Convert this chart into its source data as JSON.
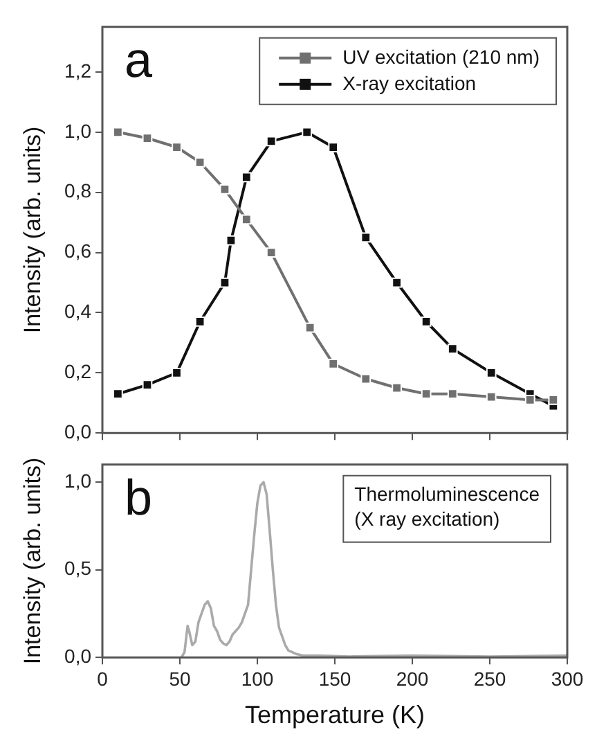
{
  "chart_data": [
    {
      "type": "line",
      "ylabel": "Intensity (arb. units)",
      "annotations": [
        "a"
      ],
      "xlim": [
        0,
        300
      ],
      "xticks": [
        0,
        50,
        100,
        150,
        200,
        250,
        300
      ],
      "ylim": [
        0,
        1.35
      ],
      "yticks": [
        {
          "value": 0,
          "label": "0,0"
        },
        {
          "value": 0.2,
          "label": "0,2"
        },
        {
          "value": 0.4,
          "label": "0,4"
        },
        {
          "value": 0.6,
          "label": "0,6"
        },
        {
          "value": 0.8,
          "label": "0,8"
        },
        {
          "value": 1.0,
          "label": "1,0"
        },
        {
          "value": 1.2,
          "label": "1,2"
        }
      ],
      "tick_labels": "y",
      "grid": false,
      "legend": "top right",
      "marker": "square",
      "line_style": "solid",
      "series": [
        {
          "name": "UV excitation (210 nm)",
          "color": "#707070",
          "x": [
            10,
            29,
            48,
            63,
            79,
            93,
            109,
            134,
            149,
            170,
            190,
            209,
            226,
            251,
            276,
            291
          ],
          "values": [
            1.0,
            0.98,
            0.95,
            0.9,
            0.81,
            0.71,
            0.6,
            0.35,
            0.23,
            0.18,
            0.15,
            0.13,
            0.13,
            0.12,
            0.11,
            0.11
          ]
        },
        {
          "name": "X-ray excitation",
          "color": "#111111",
          "x": [
            10,
            29,
            48,
            63,
            79,
            83,
            93,
            109,
            132,
            149,
            170,
            190,
            209,
            226,
            251,
            276,
            291
          ],
          "values": [
            0.13,
            0.16,
            0.2,
            0.37,
            0.5,
            0.64,
            0.85,
            0.97,
            1.0,
            0.95,
            0.65,
            0.5,
            0.37,
            0.28,
            0.2,
            0.13,
            0.09
          ]
        }
      ]
    },
    {
      "type": "line",
      "xlabel": "Temperature (K)",
      "ylabel": "Intensity (arb. units)",
      "annotations": [
        "b",
        "Thermoluminescence",
        "(X ray excitation)"
      ],
      "xlim": [
        0,
        300
      ],
      "xticks": [
        0,
        50,
        100,
        150,
        200,
        250,
        300
      ],
      "ylim": [
        0,
        1.1
      ],
      "yticks": [
        {
          "value": 0,
          "label": "0,0"
        },
        {
          "value": 0.5,
          "label": "0,5"
        },
        {
          "value": 1.0,
          "label": "1,0"
        }
      ],
      "grid": false,
      "marker": "none",
      "line_style": "solid",
      "series": [
        {
          "color": "#aaaaaa",
          "x": [
            51,
            53,
            55,
            56,
            58,
            60,
            62,
            64,
            66,
            68,
            70,
            72,
            74,
            76,
            78,
            80,
            82,
            84,
            86,
            88,
            90,
            92,
            94,
            96,
            98,
            100,
            102,
            104,
            106,
            108,
            110,
            112,
            114,
            116,
            118,
            120,
            125,
            130,
            140,
            160,
            200,
            250,
            300
          ],
          "values": [
            0,
            0.03,
            0.18,
            0.15,
            0.07,
            0.09,
            0.2,
            0.25,
            0.3,
            0.32,
            0.28,
            0.18,
            0.15,
            0.1,
            0.08,
            0.07,
            0.09,
            0.13,
            0.15,
            0.17,
            0.2,
            0.25,
            0.3,
            0.5,
            0.7,
            0.88,
            0.98,
            1.0,
            0.93,
            0.72,
            0.5,
            0.3,
            0.17,
            0.12,
            0.07,
            0.04,
            0.02,
            0.01,
            0.01,
            0.005,
            0.01,
            0.005,
            0.01
          ]
        }
      ]
    }
  ]
}
